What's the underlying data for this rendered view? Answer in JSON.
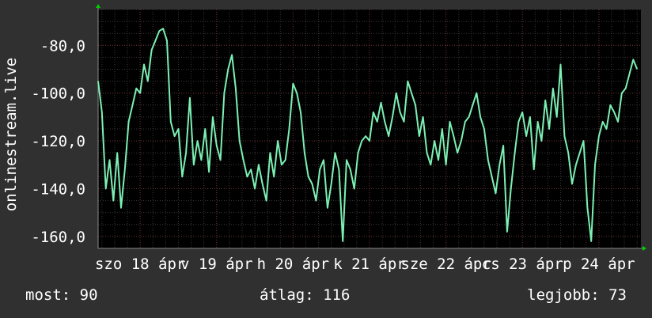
{
  "chart_data": {
    "type": "line",
    "ylabel": "onlinestream.live",
    "ylim": [
      -165,
      -65
    ],
    "y_ticks": [
      -80,
      -100,
      -120,
      -140,
      -160
    ],
    "y_tick_labels": [
      "-80,0",
      "-100,0",
      "-120,0",
      "-140,0",
      "-160,0"
    ],
    "x_ticks": [
      {
        "label": "szo 18 ápr",
        "at": 0.0
      },
      {
        "label": "v 19 ápr",
        "at": 1.0
      },
      {
        "label": "h 20 ápr",
        "at": 2.0
      },
      {
        "label": "k 21 ápr",
        "at": 3.0
      },
      {
        "label": "sze 22 ápr",
        "at": 4.0
      },
      {
        "label": "cs 23 ápr",
        "at": 5.0
      },
      {
        "label": "p 24 ápr",
        "at": 6.0
      }
    ],
    "xlim": [
      -0.55,
      6.55
    ],
    "grid": true,
    "colors": {
      "background": "#303030",
      "plot_area": "#000000",
      "line": "#7cf0b4",
      "grid_major": "#6a2e2e",
      "grid_minor": "#3a3a3a",
      "arrow": "#00d000"
    },
    "series": [
      {
        "x": [
          -0.55,
          -0.5,
          -0.45,
          -0.4,
          -0.35,
          -0.3,
          -0.25,
          -0.2,
          -0.15,
          -0.1,
          -0.05,
          0.0,
          0.05,
          0.1,
          0.15,
          0.2,
          0.25,
          0.3,
          0.35,
          0.4,
          0.45,
          0.5,
          0.55,
          0.6,
          0.65,
          0.7,
          0.75,
          0.8,
          0.85,
          0.9,
          0.95,
          1.0,
          1.05,
          1.1,
          1.15,
          1.2,
          1.25,
          1.3,
          1.35,
          1.4,
          1.45,
          1.5,
          1.55,
          1.6,
          1.65,
          1.7,
          1.75,
          1.8,
          1.85,
          1.9,
          1.95,
          2.0,
          2.05,
          2.1,
          2.15,
          2.2,
          2.25,
          2.3,
          2.35,
          2.4,
          2.45,
          2.5,
          2.55,
          2.6,
          2.65,
          2.7,
          2.75,
          2.8,
          2.85,
          2.9,
          2.95,
          3.0,
          3.05,
          3.1,
          3.15,
          3.2,
          3.25,
          3.3,
          3.35,
          3.4,
          3.45,
          3.5,
          3.55,
          3.6,
          3.65,
          3.7,
          3.75,
          3.8,
          3.85,
          3.9,
          3.95,
          4.0,
          4.05,
          4.1,
          4.15,
          4.2,
          4.25,
          4.3,
          4.35,
          4.4,
          4.45,
          4.5,
          4.55,
          4.6,
          4.65,
          4.7,
          4.75,
          4.8,
          4.85,
          4.9,
          4.95,
          5.0,
          5.05,
          5.1,
          5.15,
          5.2,
          5.25,
          5.3,
          5.35,
          5.4,
          5.45,
          5.5,
          5.55,
          5.6,
          5.65,
          5.7,
          5.75,
          5.8,
          5.85,
          5.9,
          5.95,
          6.0,
          6.05,
          6.1,
          6.15,
          6.2,
          6.25,
          6.3,
          6.35,
          6.4,
          6.45,
          6.5
        ],
        "values": [
          -95,
          -108,
          -140,
          -128,
          -145,
          -125,
          -148,
          -132,
          -112,
          -105,
          -98,
          -100,
          -88,
          -95,
          -82,
          -78,
          -74,
          -73,
          -78,
          -112,
          -118,
          -115,
          -135,
          -125,
          -102,
          -130,
          -120,
          -128,
          -115,
          -133,
          -110,
          -122,
          -128,
          -100,
          -90,
          -84,
          -98,
          -120,
          -128,
          -135,
          -132,
          -140,
          -130,
          -138,
          -145,
          -125,
          -135,
          -120,
          -130,
          -128,
          -115,
          -96,
          -100,
          -108,
          -125,
          -135,
          -138,
          -145,
          -132,
          -128,
          -148,
          -138,
          -125,
          -132,
          -162,
          -128,
          -132,
          -140,
          -125,
          -120,
          -118,
          -120,
          -108,
          -112,
          -104,
          -112,
          -118,
          -110,
          -100,
          -108,
          -112,
          -95,
          -100,
          -105,
          -118,
          -110,
          -125,
          -130,
          -120,
          -128,
          -115,
          -130,
          -112,
          -118,
          -125,
          -120,
          -112,
          -110,
          -105,
          -100,
          -110,
          -115,
          -128,
          -135,
          -142,
          -130,
          -122,
          -158,
          -140,
          -125,
          -112,
          -108,
          -118,
          -110,
          -132,
          -112,
          -120,
          -103,
          -115,
          -98,
          -110,
          -88,
          -118,
          -125,
          -138,
          -130,
          -125,
          -120,
          -148,
          -162,
          -130,
          -118,
          -112,
          -115,
          -105,
          -108,
          -112,
          -100,
          -98,
          -92,
          -86,
          -90
        ]
      }
    ]
  },
  "stats": {
    "now": "most: 90",
    "avg": "átlag: 116",
    "best": "legjobb: 73"
  }
}
